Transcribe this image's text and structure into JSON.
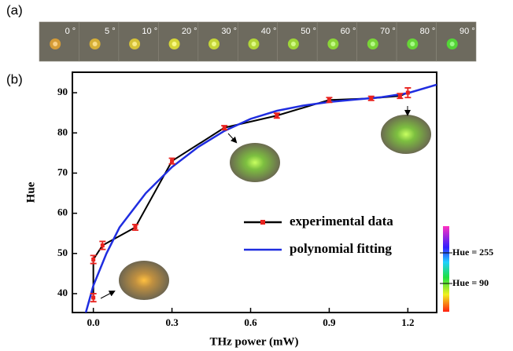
{
  "panel_a": {
    "label": "(a)",
    "angles": [
      "0 °",
      "5 °",
      "10 °",
      "20 °",
      "30 °",
      "40 °",
      "50 °",
      "60 °",
      "70 °",
      "80 °",
      "90 °"
    ]
  },
  "chart_data": {
    "type": "line",
    "panel_label": "(b)",
    "x_label": "THz power (mW)",
    "y_label": "Hue",
    "xlim": [
      -0.08,
      1.31
    ],
    "ylim": [
      35.3,
      95.1
    ],
    "xticks": [
      {
        "value": 0,
        "label": "0.0"
      },
      0.3,
      0.6,
      0.9,
      1.2
    ],
    "yticks": [
      40,
      50,
      60,
      70,
      80,
      90
    ],
    "legend": "lower right",
    "series": [
      {
        "name": "experimental data",
        "color": "#000000",
        "marker_color": "#e8231f",
        "x": [
          0,
          0,
          0.035,
          0.16,
          0.3,
          0.5,
          0.7,
          0.9,
          1.06,
          1.17,
          1.2
        ],
        "values": [
          39,
          48.5,
          52,
          56.5,
          73,
          81.3,
          84.3,
          88.2,
          88.6,
          89.2,
          90
        ],
        "errors": [
          1,
          1,
          1,
          0.7,
          0.7,
          0.5,
          0.6,
          0.6,
          0.5,
          0.6,
          1.2
        ]
      },
      {
        "name": "polynomial fitting",
        "color": "#1f2de0",
        "x": [
          -0.03,
          0,
          0.05,
          0.1,
          0.2,
          0.3,
          0.4,
          0.5,
          0.6,
          0.7,
          0.8,
          0.9,
          1.0,
          1.1,
          1.2,
          1.31
        ],
        "values": [
          35,
          42,
          50,
          56.5,
          65,
          71.5,
          76.5,
          80.5,
          83.5,
          85.5,
          86.8,
          87.7,
          88.3,
          88.9,
          89.9,
          92
        ]
      }
    ],
    "colorbar": {
      "labels": [
        "Hue = 255",
        "Hue = 90"
      ]
    }
  }
}
